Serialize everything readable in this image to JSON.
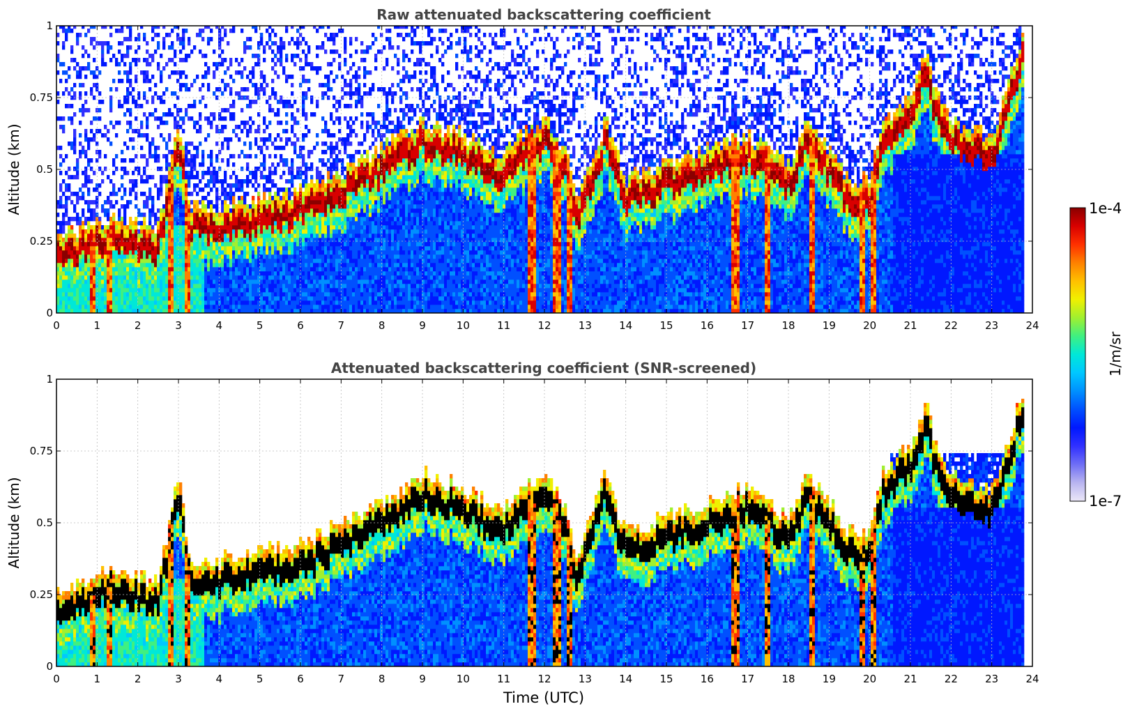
{
  "chart_data": [
    {
      "type": "heatmap",
      "title": "Raw attenuated backscattering coefficient",
      "xlabel": "",
      "ylabel": "Altitude (km)",
      "xlim": [
        0,
        24
      ],
      "ylim": [
        0,
        1
      ],
      "x_ticks": [
        "0",
        "1",
        "2",
        "3",
        "4",
        "5",
        "6",
        "7",
        "8",
        "9",
        "10",
        "11",
        "12",
        "13",
        "14",
        "15",
        "16",
        "17",
        "18",
        "19",
        "20",
        "21",
        "22",
        "23",
        "24"
      ],
      "y_ticks": [
        "0",
        "0.25",
        "0.5",
        "0.75",
        "1"
      ],
      "grid": true,
      "screened": false,
      "layer_top_km": [
        [
          0,
          0.2
        ],
        [
          0.5,
          0.22
        ],
        [
          1,
          0.25
        ],
        [
          1.5,
          0.26
        ],
        [
          2,
          0.24
        ],
        [
          2.5,
          0.22
        ],
        [
          3,
          0.6
        ],
        [
          3.3,
          0.3
        ],
        [
          4,
          0.3
        ],
        [
          5,
          0.33
        ],
        [
          6,
          0.36
        ],
        [
          7,
          0.42
        ],
        [
          8,
          0.5
        ],
        [
          9,
          0.6
        ],
        [
          10,
          0.55
        ],
        [
          11,
          0.48
        ],
        [
          11.5,
          0.55
        ],
        [
          12,
          0.6
        ],
        [
          12.5,
          0.5
        ],
        [
          12.8,
          0.32
        ],
        [
          13,
          0.4
        ],
        [
          13.5,
          0.6
        ],
        [
          14,
          0.4
        ],
        [
          15,
          0.45
        ],
        [
          16,
          0.5
        ],
        [
          17,
          0.55
        ],
        [
          18,
          0.45
        ],
        [
          18.5,
          0.6
        ],
        [
          19,
          0.5
        ],
        [
          19.5,
          0.4
        ],
        [
          20,
          0.4
        ],
        [
          20.3,
          0.6
        ],
        [
          21,
          0.7
        ],
        [
          21.4,
          0.85
        ],
        [
          21.6,
          0.7
        ],
        [
          22,
          0.6
        ],
        [
          23,
          0.55
        ],
        [
          23.8,
          0.9
        ]
      ],
      "precip_columns_utc": [
        0.9,
        1.3,
        2.8,
        3.2,
        11.7,
        12.3,
        12.6,
        16.7,
        17.5,
        18.6,
        19.8,
        20.1
      ],
      "colorbar": {
        "label": "1/m/sr",
        "min": "1e-7",
        "max": "1e-4",
        "scale": "log"
      }
    },
    {
      "type": "heatmap",
      "title": "Attenuated backscattering coefficient (SNR-screened)",
      "xlabel": "Time (UTC)",
      "ylabel": "Altitude (km)",
      "xlim": [
        0,
        24
      ],
      "ylim": [
        0,
        1
      ],
      "x_ticks": [
        "0",
        "1",
        "2",
        "3",
        "4",
        "5",
        "6",
        "7",
        "8",
        "9",
        "10",
        "11",
        "12",
        "13",
        "14",
        "15",
        "16",
        "17",
        "18",
        "19",
        "20",
        "21",
        "22",
        "23",
        "24"
      ],
      "y_ticks": [
        "0",
        "0.25",
        "0.5",
        "0.75",
        "1"
      ],
      "grid": true,
      "screened": true,
      "colorbar": {
        "label": "1/m/sr",
        "min": "1e-7",
        "max": "1e-4",
        "scale": "log"
      }
    }
  ],
  "colorbar": {
    "label": "1/m/sr",
    "max_label": "1e-4",
    "min_label": "1e-7",
    "colors": [
      "#ece8f8",
      "#b8b4f0",
      "#6f6ff5",
      "#3030ff",
      "#0018ff",
      "#0050ff",
      "#0090ff",
      "#00c8ff",
      "#00e8d8",
      "#40f080",
      "#a0f030",
      "#f0f000",
      "#ffc000",
      "#ff8000",
      "#ff3000",
      "#d80000",
      "#8a0000"
    ]
  }
}
